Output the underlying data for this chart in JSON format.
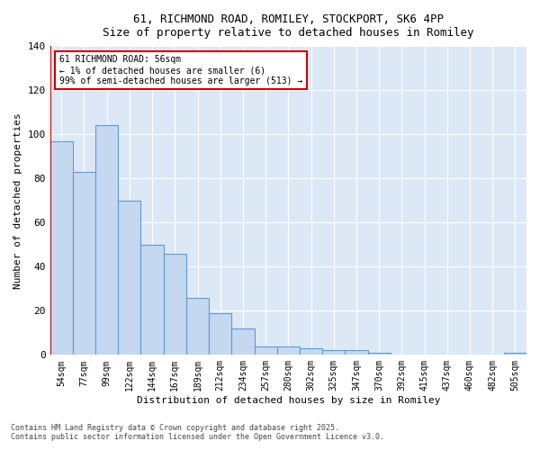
{
  "title1": "61, RICHMOND ROAD, ROMILEY, STOCKPORT, SK6 4PP",
  "title2": "Size of property relative to detached houses in Romiley",
  "xlabel": "Distribution of detached houses by size in Romiley",
  "ylabel": "Number of detached properties",
  "categories": [
    "54sqm",
    "77sqm",
    "99sqm",
    "122sqm",
    "144sqm",
    "167sqm",
    "189sqm",
    "212sqm",
    "234sqm",
    "257sqm",
    "280sqm",
    "302sqm",
    "325sqm",
    "347sqm",
    "370sqm",
    "392sqm",
    "415sqm",
    "437sqm",
    "460sqm",
    "482sqm",
    "505sqm"
  ],
  "values": [
    97,
    83,
    104,
    70,
    50,
    46,
    26,
    19,
    12,
    4,
    4,
    3,
    2,
    2,
    1,
    0,
    0,
    0,
    0,
    0,
    1
  ],
  "bar_color": "#c5d8f0",
  "bar_edge_color": "#5b9bd5",
  "highlight_line_color": "#cc0000",
  "annotation_text": "61 RICHMOND ROAD: 56sqm\n← 1% of detached houses are smaller (6)\n99% of semi-detached houses are larger (513) →",
  "annotation_box_color": "#ffffff",
  "annotation_box_edge_color": "#cc0000",
  "ylim": [
    0,
    140
  ],
  "yticks": [
    0,
    20,
    40,
    60,
    80,
    100,
    120,
    140
  ],
  "footnote1": "Contains HM Land Registry data © Crown copyright and database right 2025.",
  "footnote2": "Contains public sector information licensed under the Open Government Licence v3.0.",
  "bg_color": "#ffffff",
  "plot_bg_color": "#dce8f5"
}
